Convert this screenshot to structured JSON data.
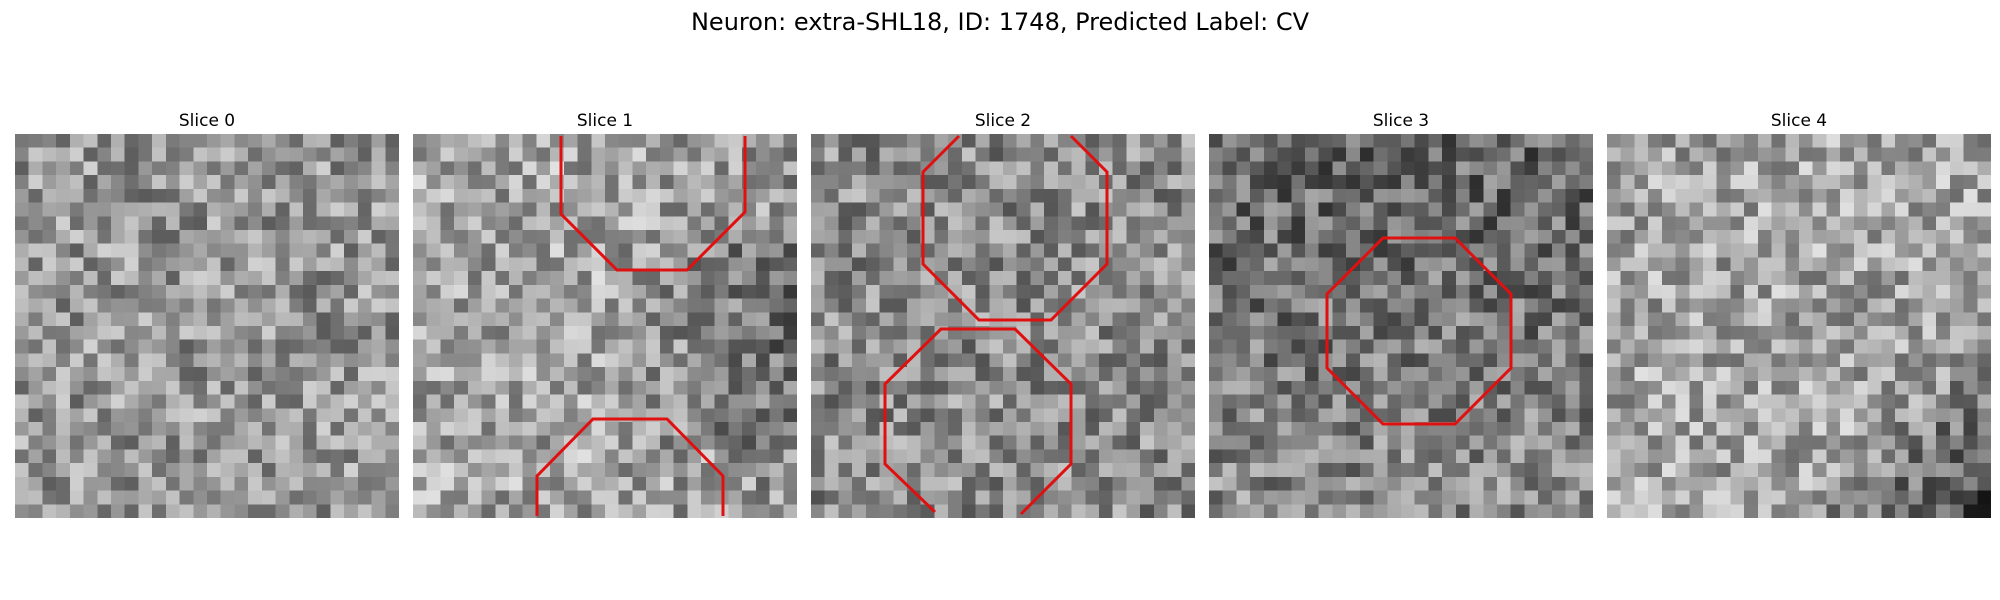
{
  "figure": {
    "title": "Neuron: extra-SHL18, ID: 1748, Predicted Label: CV"
  },
  "overlay_color": "#e01010",
  "panels": [
    {
      "title": "Slice 0",
      "seed": 11,
      "base": 150,
      "bias": "none"
    },
    {
      "title": "Slice 1",
      "seed": 23,
      "base": 165,
      "bias": "dark-right"
    },
    {
      "title": "Slice 2",
      "seed": 37,
      "base": 140,
      "bias": "none"
    },
    {
      "title": "Slice 3",
      "seed": 51,
      "base": 140,
      "bias": "dark-top"
    },
    {
      "title": "Slice 4",
      "seed": 67,
      "base": 165,
      "bias": "dark-bottom-right"
    }
  ]
}
